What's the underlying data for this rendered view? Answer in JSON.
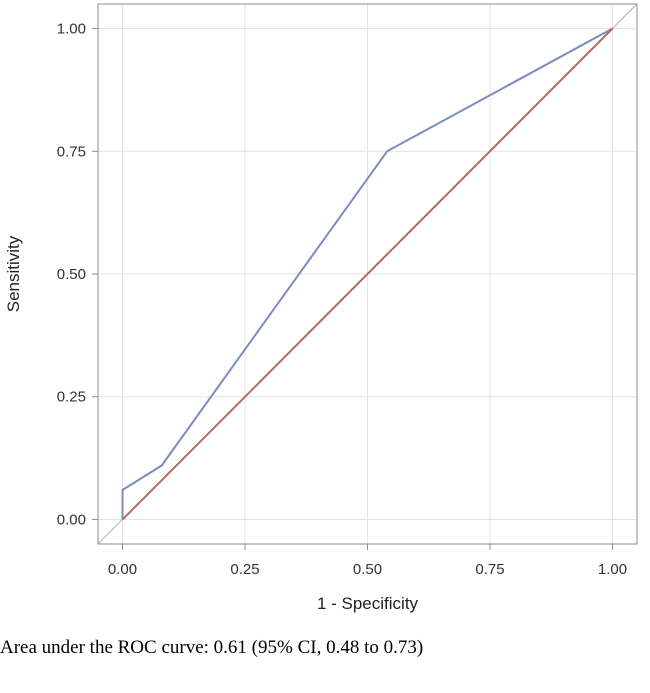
{
  "chart_data": {
    "type": "line",
    "xlabel": "1 - Specificity",
    "ylabel": "Sensitivity",
    "xlim": [
      -0.05,
      1.05
    ],
    "ylim": [
      -0.05,
      1.05
    ],
    "x_ticks": [
      "0.00",
      "0.25",
      "0.50",
      "0.75",
      "1.00"
    ],
    "y_ticks": [
      "0.00",
      "0.25",
      "0.50",
      "0.75",
      "1.00"
    ],
    "grid": true,
    "series": [
      {
        "x": [
          0.0,
          0.0,
          0.08,
          0.54,
          1.0
        ],
        "y": [
          0.0,
          0.06,
          0.11,
          0.75,
          1.0
        ],
        "color": "#7a8cc0"
      },
      {
        "x": [
          0.0,
          1.0
        ],
        "y": [
          0.0,
          1.0
        ],
        "color": "#b56a5e"
      }
    ]
  },
  "caption": "Area under the ROC curve: 0.61 (95% CI, 0.48 to 0.73)"
}
